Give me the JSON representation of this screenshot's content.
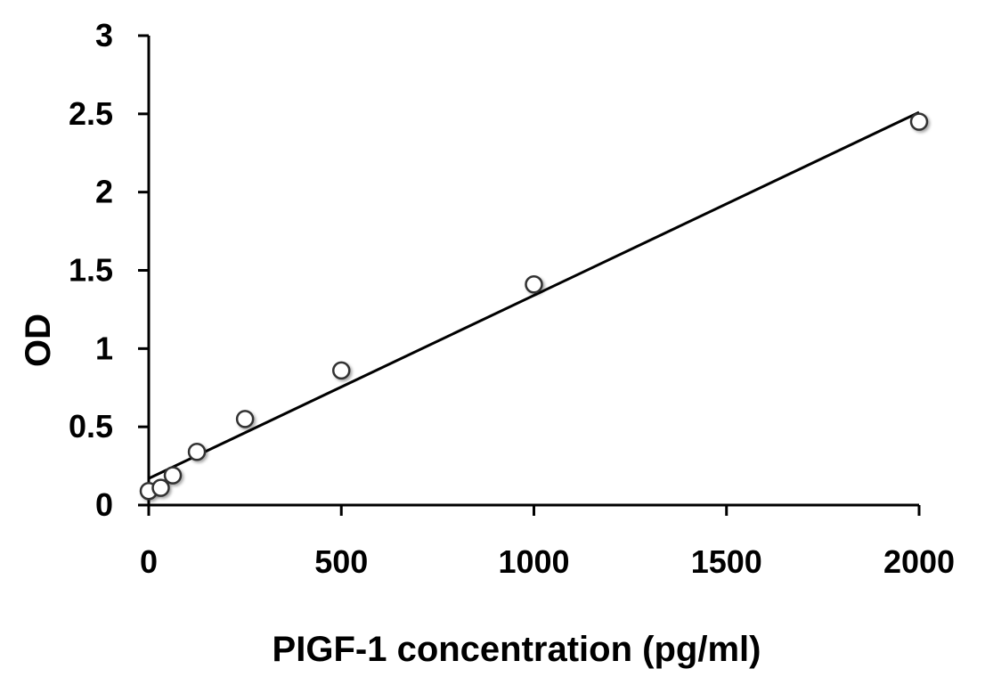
{
  "chart_data": {
    "type": "scatter",
    "title": "",
    "xlabel": "PIGF-1 concentration (pg/ml)",
    "ylabel": "OD",
    "xlim": [
      0,
      2000
    ],
    "ylim": [
      0,
      3
    ],
    "x_ticks": [
      0,
      500,
      1000,
      1500,
      2000
    ],
    "x_tick_labels": [
      "0",
      "500",
      "1000",
      "1500",
      "2000"
    ],
    "y_ticks": [
      0,
      0.5,
      1,
      1.5,
      2,
      2.5,
      3
    ],
    "y_tick_labels": [
      "0",
      "0.5",
      "1",
      "1.5",
      "2",
      "2.5",
      "3"
    ],
    "grid": false,
    "legend": "none",
    "series": [
      {
        "marker": "open-circle",
        "points": [
          {
            "x": 0,
            "y": 0.09
          },
          {
            "x": 31.25,
            "y": 0.11
          },
          {
            "x": 62.5,
            "y": 0.19
          },
          {
            "x": 125,
            "y": 0.34
          },
          {
            "x": 250,
            "y": 0.55
          },
          {
            "x": 500,
            "y": 0.86
          },
          {
            "x": 1000,
            "y": 1.41
          },
          {
            "x": 2000,
            "y": 2.45
          }
        ]
      }
    ],
    "trendline": {
      "type": "linear",
      "x": [
        0,
        2000
      ],
      "y": [
        0.17,
        2.51
      ]
    },
    "colors": {
      "axis": "#000000",
      "marker_stroke": "#333333",
      "marker_fill": "#ffffff",
      "trendline": "#000000"
    }
  }
}
